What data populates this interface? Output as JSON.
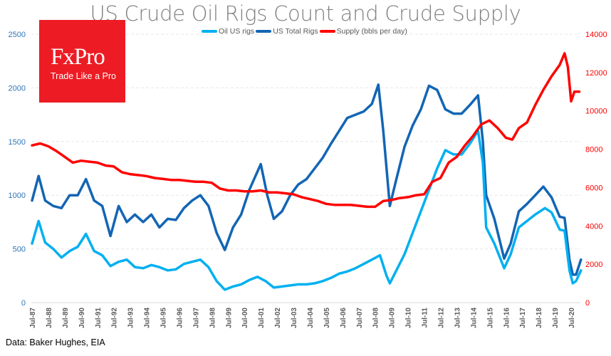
{
  "chart_data": {
    "type": "line",
    "title": "US Crude Oil Rigs Count and Crude Supply",
    "legend_position": "top",
    "grid": true,
    "y_left": {
      "ylim": [
        0,
        2500
      ],
      "ticks": [
        "0",
        "500",
        "1000",
        "1500",
        "2000",
        "2500"
      ],
      "color": "#2e75b6"
    },
    "y_right": {
      "ylim": [
        0,
        14000
      ],
      "ticks": [
        "0",
        "2000",
        "4000",
        "6000",
        "8000",
        "10000",
        "12000",
        "14000"
      ],
      "color": "#ff0000"
    },
    "x_ticks": [
      "Jul-87",
      "Jul-88",
      "Jul-89",
      "Jul-90",
      "Jul-91",
      "Jul-92",
      "Jul-93",
      "Jul-94",
      "Jul-95",
      "Jul-96",
      "Jul-97",
      "Jul-98",
      "Jul-99",
      "Jul-00",
      "Jul-01",
      "Jul-02",
      "Jul-03",
      "Jul-04",
      "Jul-05",
      "Jul-06",
      "Jul-07",
      "Jul-08",
      "Jul-09",
      "Jul-10",
      "Jul-11",
      "Jul-12",
      "Jul-13",
      "Jul-14",
      "Jul-15",
      "Jul-16",
      "Jul-17",
      "Jul-18",
      "Jul-19",
      "Jul-20"
    ],
    "series": [
      {
        "name": "Oil US rigs",
        "axis": "left",
        "color": "#00b0f0",
        "points": [
          [
            1987.5,
            550
          ],
          [
            1987.9,
            760
          ],
          [
            1988.3,
            560
          ],
          [
            1988.8,
            500
          ],
          [
            1989.3,
            420
          ],
          [
            1989.8,
            480
          ],
          [
            1990.3,
            520
          ],
          [
            1990.8,
            640
          ],
          [
            1991.3,
            480
          ],
          [
            1991.8,
            440
          ],
          [
            1992.3,
            340
          ],
          [
            1992.8,
            380
          ],
          [
            1993.3,
            400
          ],
          [
            1993.8,
            330
          ],
          [
            1994.3,
            320
          ],
          [
            1994.8,
            350
          ],
          [
            1995.3,
            330
          ],
          [
            1995.8,
            300
          ],
          [
            1996.3,
            310
          ],
          [
            1996.8,
            360
          ],
          [
            1997.3,
            380
          ],
          [
            1997.8,
            400
          ],
          [
            1998.3,
            330
          ],
          [
            1998.8,
            200
          ],
          [
            1999.3,
            120
          ],
          [
            1999.8,
            150
          ],
          [
            2000.3,
            170
          ],
          [
            2000.8,
            210
          ],
          [
            2001.3,
            240
          ],
          [
            2001.8,
            200
          ],
          [
            2002.3,
            140
          ],
          [
            2002.8,
            150
          ],
          [
            2003.3,
            160
          ],
          [
            2003.8,
            170
          ],
          [
            2004.3,
            170
          ],
          [
            2004.8,
            180
          ],
          [
            2005.3,
            200
          ],
          [
            2005.8,
            230
          ],
          [
            2006.3,
            270
          ],
          [
            2006.8,
            290
          ],
          [
            2007.3,
            320
          ],
          [
            2007.8,
            360
          ],
          [
            2008.3,
            400
          ],
          [
            2008.8,
            440
          ],
          [
            2009.2,
            250
          ],
          [
            2009.4,
            180
          ],
          [
            2009.8,
            300
          ],
          [
            2010.3,
            450
          ],
          [
            2010.8,
            650
          ],
          [
            2011.3,
            850
          ],
          [
            2011.8,
            1050
          ],
          [
            2012.3,
            1250
          ],
          [
            2012.8,
            1420
          ],
          [
            2013.3,
            1380
          ],
          [
            2013.8,
            1380
          ],
          [
            2014.3,
            1480
          ],
          [
            2014.8,
            1600
          ],
          [
            2015.1,
            1300
          ],
          [
            2015.3,
            700
          ],
          [
            2015.8,
            550
          ],
          [
            2016.4,
            320
          ],
          [
            2016.8,
            450
          ],
          [
            2017.3,
            700
          ],
          [
            2017.8,
            760
          ],
          [
            2018.3,
            820
          ],
          [
            2018.9,
            880
          ],
          [
            2019.3,
            840
          ],
          [
            2019.8,
            680
          ],
          [
            2020.1,
            670
          ],
          [
            2020.4,
            300
          ],
          [
            2020.6,
            180
          ],
          [
            2020.8,
            200
          ],
          [
            2021.1,
            300
          ]
        ]
      },
      {
        "name": "US Total Rigs",
        "axis": "left",
        "color": "#1365b4",
        "points": [
          [
            1987.5,
            950
          ],
          [
            1987.9,
            1180
          ],
          [
            1988.3,
            950
          ],
          [
            1988.8,
            900
          ],
          [
            1989.3,
            880
          ],
          [
            1989.8,
            1000
          ],
          [
            1990.3,
            1000
          ],
          [
            1990.8,
            1150
          ],
          [
            1991.3,
            950
          ],
          [
            1991.8,
            900
          ],
          [
            1992.3,
            620
          ],
          [
            1992.8,
            900
          ],
          [
            1993.3,
            750
          ],
          [
            1993.8,
            820
          ],
          [
            1994.3,
            750
          ],
          [
            1994.8,
            820
          ],
          [
            1995.3,
            700
          ],
          [
            1995.8,
            780
          ],
          [
            1996.3,
            770
          ],
          [
            1996.8,
            880
          ],
          [
            1997.3,
            950
          ],
          [
            1997.8,
            1000
          ],
          [
            1998.3,
            900
          ],
          [
            1998.8,
            650
          ],
          [
            1999.3,
            490
          ],
          [
            1999.8,
            700
          ],
          [
            2000.3,
            820
          ],
          [
            2000.8,
            1050
          ],
          [
            2001.5,
            1290
          ],
          [
            2001.9,
            1000
          ],
          [
            2002.3,
            780
          ],
          [
            2002.8,
            850
          ],
          [
            2003.3,
            1000
          ],
          [
            2003.8,
            1100
          ],
          [
            2004.3,
            1150
          ],
          [
            2004.8,
            1250
          ],
          [
            2005.3,
            1350
          ],
          [
            2005.8,
            1480
          ],
          [
            2006.3,
            1600
          ],
          [
            2006.8,
            1720
          ],
          [
            2007.3,
            1750
          ],
          [
            2007.8,
            1780
          ],
          [
            2008.3,
            1850
          ],
          [
            2008.7,
            2030
          ],
          [
            2009.0,
            1600
          ],
          [
            2009.4,
            900
          ],
          [
            2009.8,
            1150
          ],
          [
            2010.3,
            1450
          ],
          [
            2010.8,
            1650
          ],
          [
            2011.3,
            1800
          ],
          [
            2011.8,
            2020
          ],
          [
            2012.3,
            1980
          ],
          [
            2012.8,
            1800
          ],
          [
            2013.3,
            1760
          ],
          [
            2013.8,
            1760
          ],
          [
            2014.3,
            1840
          ],
          [
            2014.8,
            1930
          ],
          [
            2015.1,
            1500
          ],
          [
            2015.3,
            1000
          ],
          [
            2015.8,
            780
          ],
          [
            2016.4,
            410
          ],
          [
            2016.8,
            550
          ],
          [
            2017.3,
            850
          ],
          [
            2017.8,
            920
          ],
          [
            2018.3,
            1000
          ],
          [
            2018.8,
            1080
          ],
          [
            2019.3,
            980
          ],
          [
            2019.8,
            800
          ],
          [
            2020.1,
            790
          ],
          [
            2020.4,
            400
          ],
          [
            2020.6,
            260
          ],
          [
            2020.8,
            260
          ],
          [
            2021.1,
            400
          ]
        ]
      },
      {
        "name": "Supply (bbls per day)",
        "axis": "right",
        "color": "#ff0000",
        "points": [
          [
            1987.5,
            8200
          ],
          [
            1988.0,
            8300
          ],
          [
            1988.5,
            8150
          ],
          [
            1989.0,
            7900
          ],
          [
            1989.5,
            7600
          ],
          [
            1990.0,
            7300
          ],
          [
            1990.5,
            7400
          ],
          [
            1991.0,
            7350
          ],
          [
            1991.5,
            7300
          ],
          [
            1992.0,
            7150
          ],
          [
            1992.5,
            7100
          ],
          [
            1993.0,
            6800
          ],
          [
            1993.5,
            6700
          ],
          [
            1994.0,
            6650
          ],
          [
            1994.5,
            6600
          ],
          [
            1995.0,
            6500
          ],
          [
            1995.5,
            6450
          ],
          [
            1996.0,
            6400
          ],
          [
            1996.5,
            6400
          ],
          [
            1997.0,
            6350
          ],
          [
            1997.5,
            6300
          ],
          [
            1998.0,
            6300
          ],
          [
            1998.5,
            6250
          ],
          [
            1999.0,
            5950
          ],
          [
            1999.5,
            5850
          ],
          [
            2000.0,
            5850
          ],
          [
            2000.5,
            5800
          ],
          [
            2001.0,
            5800
          ],
          [
            2001.5,
            5850
          ],
          [
            2002.0,
            5750
          ],
          [
            2002.5,
            5750
          ],
          [
            2003.0,
            5700
          ],
          [
            2003.5,
            5650
          ],
          [
            2004.0,
            5500
          ],
          [
            2004.5,
            5400
          ],
          [
            2005.0,
            5300
          ],
          [
            2005.5,
            5150
          ],
          [
            2006.0,
            5100
          ],
          [
            2006.5,
            5100
          ],
          [
            2007.0,
            5100
          ],
          [
            2007.5,
            5050
          ],
          [
            2008.0,
            5000
          ],
          [
            2008.5,
            5000
          ],
          [
            2009.0,
            5300
          ],
          [
            2009.5,
            5350
          ],
          [
            2010.0,
            5450
          ],
          [
            2010.5,
            5500
          ],
          [
            2011.0,
            5600
          ],
          [
            2011.5,
            5650
          ],
          [
            2012.0,
            6300
          ],
          [
            2012.5,
            6500
          ],
          [
            2013.0,
            7300
          ],
          [
            2013.5,
            7600
          ],
          [
            2014.0,
            8200
          ],
          [
            2014.5,
            8700
          ],
          [
            2015.0,
            9300
          ],
          [
            2015.5,
            9500
          ],
          [
            2016.0,
            9100
          ],
          [
            2016.5,
            8600
          ],
          [
            2016.9,
            8500
          ],
          [
            2017.3,
            9100
          ],
          [
            2017.8,
            9400
          ],
          [
            2018.3,
            10300
          ],
          [
            2018.8,
            11100
          ],
          [
            2019.3,
            11800
          ],
          [
            2019.8,
            12400
          ],
          [
            2020.1,
            13000
          ],
          [
            2020.3,
            12300
          ],
          [
            2020.5,
            10500
          ],
          [
            2020.7,
            11000
          ],
          [
            2021.0,
            11000
          ]
        ]
      }
    ]
  },
  "logo": {
    "brand": "FxPro",
    "tagline": "Trade Like a Pro"
  },
  "source": "Data: Baker Hughes, EIA"
}
